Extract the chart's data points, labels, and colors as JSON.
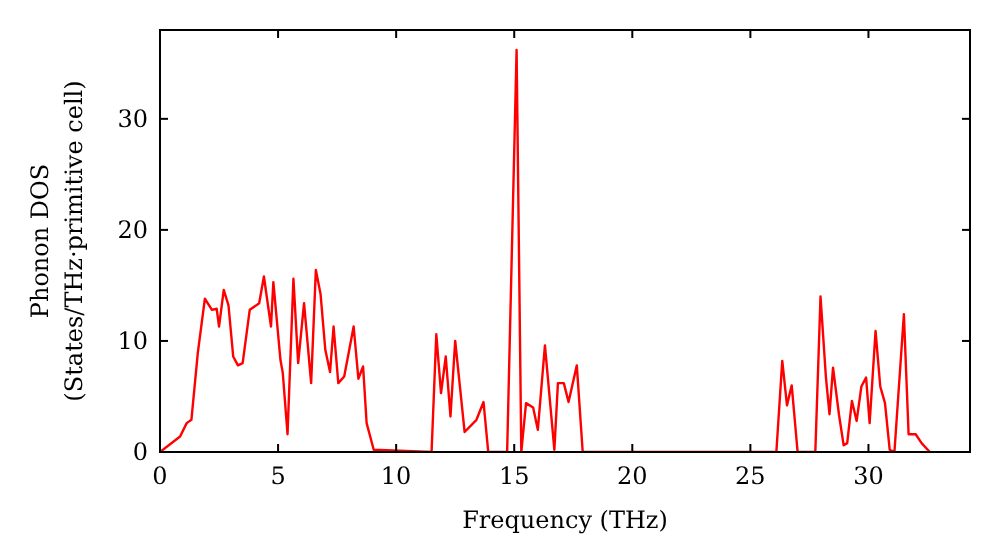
{
  "chart_data": {
    "type": "line",
    "xlabel": "Frequency (THz)",
    "ylabel": "Phonon DOS\n(States/THz·primitive cell)",
    "xlim": [
      0,
      34.3
    ],
    "ylim": [
      0,
      38
    ],
    "xticks": [
      0,
      5,
      10,
      15,
      20,
      25,
      30
    ],
    "yticks": [
      0,
      10,
      20,
      30
    ],
    "grid": false,
    "marker": "none",
    "line_style": "solid",
    "series": [
      {
        "color": "#ff0000",
        "x": [
          0,
          0.85,
          1.13,
          1.33,
          1.6,
          1.9,
          2.2,
          2.4,
          2.5,
          2.7,
          2.9,
          3.1,
          3.3,
          3.5,
          3.8,
          4.2,
          4.4,
          4.7,
          4.8,
          5.1,
          5.2,
          5.4,
          5.65,
          5.85,
          6.1,
          6.4,
          6.6,
          6.8,
          7.0,
          7.2,
          7.35,
          7.55,
          7.8,
          8.2,
          8.4,
          8.6,
          8.75,
          9.05,
          11.5,
          11.7,
          11.9,
          12.1,
          12.3,
          12.5,
          12.9,
          13.4,
          13.7,
          13.9,
          14.7,
          15.1,
          15.3,
          15.5,
          15.8,
          16.0,
          16.3,
          16.7,
          16.85,
          17.1,
          17.3,
          17.65,
          17.9,
          26.1,
          26.35,
          26.55,
          26.75,
          27.0,
          27.75,
          27.97,
          28.2,
          28.35,
          28.5,
          28.75,
          28.95,
          29.1,
          29.3,
          29.5,
          29.7,
          29.9,
          30.05,
          30.3,
          30.5,
          30.7,
          30.9,
          31.1,
          31.5,
          31.7,
          32.0,
          32.25,
          32.6
        ],
        "values": [
          0,
          1.4,
          2.6,
          2.9,
          8.9,
          13.8,
          12.8,
          12.9,
          11.3,
          14.6,
          13.2,
          8.6,
          7.8,
          8.0,
          12.8,
          13.4,
          15.8,
          11.3,
          15.3,
          8.3,
          7.1,
          1.6,
          15.6,
          8.0,
          13.4,
          6.2,
          16.4,
          14.2,
          9.2,
          7.2,
          11.3,
          6.2,
          6.8,
          11.3,
          6.6,
          7.7,
          2.6,
          0.2,
          0,
          10.6,
          5.3,
          8.6,
          3.2,
          10.0,
          1.8,
          2.9,
          4.5,
          0,
          0,
          36.2,
          0,
          4.4,
          4.0,
          2.0,
          9.6,
          0.2,
          6.2,
          6.2,
          4.5,
          7.8,
          0,
          0,
          8.2,
          4.2,
          6.0,
          0,
          0,
          14.0,
          6.7,
          3.4,
          7.6,
          3.4,
          0.6,
          0.8,
          4.6,
          2.8,
          5.9,
          6.7,
          2.6,
          10.9,
          5.9,
          4.4,
          0.2,
          0,
          12.4,
          1.6,
          1.6,
          0.8,
          0
        ]
      }
    ]
  }
}
